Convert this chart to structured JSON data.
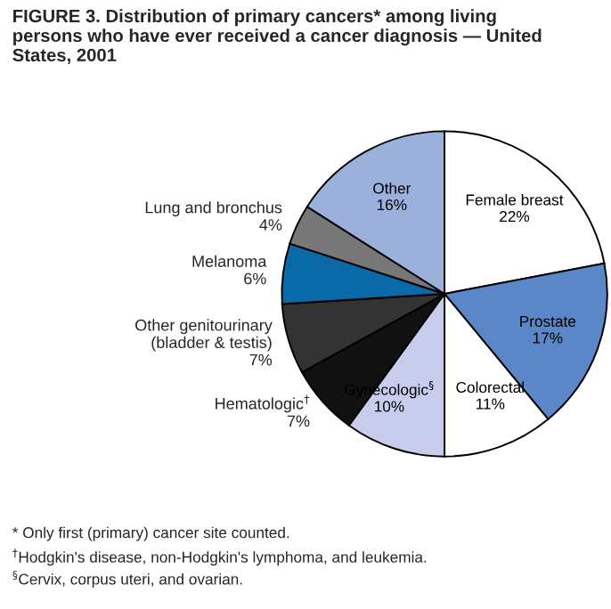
{
  "chart_data": {
    "type": "pie",
    "title": "FIGURE 3. Distribution of primary cancers* among living\npersons who have ever received a cancer diagnosis — United\nStates, 2001",
    "categories": [
      "Female breast",
      "Prostate",
      "Colorectal",
      "Gynecologic$^{§}$",
      "Hematologic$^{†}$",
      "Other genitourinary\n(bladder & testis)",
      "Melanoma",
      "Lung and bronchus",
      "Other"
    ],
    "values": [
      22,
      17,
      11,
      10,
      7,
      7,
      6,
      4,
      16
    ],
    "value_labels": [
      "22%",
      "17%",
      "11%",
      "10%",
      "7%",
      "7%",
      "6%",
      "4%",
      "16%"
    ],
    "colors": [
      "#ffffff",
      "#5b87c8",
      "#ffffff",
      "#c8cdee",
      "#111111",
      "#333333",
      "#0a6aa8",
      "#777777",
      "#9cb0dc"
    ],
    "annotations": [
      "* Only first (primary) cancer site counted.",
      "$^{†}$Hodgkin's disease, non-Hodgkin's lymphoma, and leukemia.",
      "$^{§}$Cervix, corpus uteri, and ovarian."
    ]
  }
}
